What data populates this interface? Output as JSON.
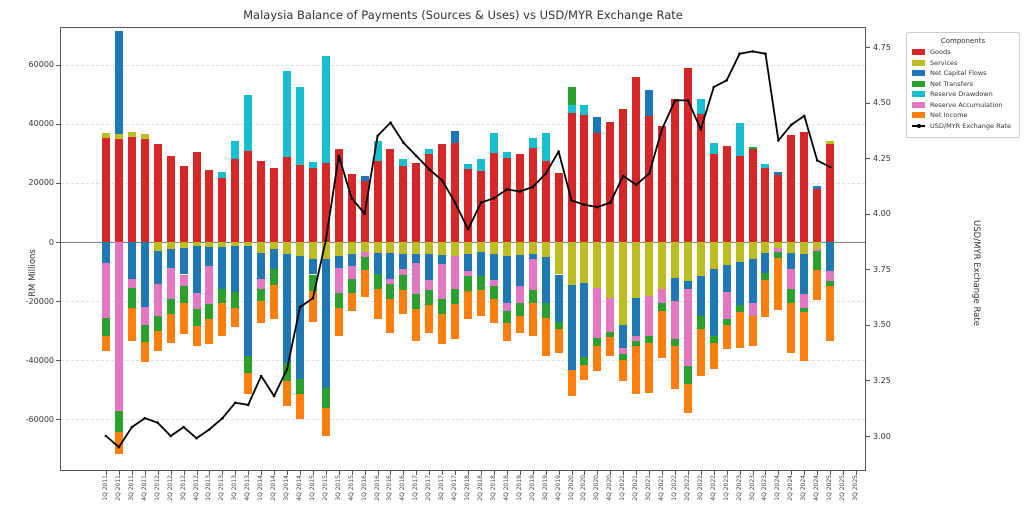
{
  "chart_data": {
    "type": "bar",
    "title": "Malaysia Balance of Payments (Sources & Uses) vs USD/MYR Exchange Rate",
    "left_axis": {
      "label": "RM Millions",
      "min": -77900,
      "max": 72500,
      "ticks": [
        {
          "value": 60000,
          "label": "60000"
        },
        {
          "value": 40000,
          "label": "40000"
        },
        {
          "value": 20000,
          "label": "20000"
        },
        {
          "value": 0,
          "label": "0"
        },
        {
          "value": -20000,
          "label": "-20000"
        },
        {
          "value": -40000,
          "label": "-40000"
        },
        {
          "value": -60000,
          "label": "-60000"
        }
      ]
    },
    "right_axis": {
      "label": "USD/MYR Exchange Rate",
      "ticks": [
        {
          "value": 4.75,
          "label": "4.75"
        },
        {
          "value": 4.5,
          "label": "4.50"
        },
        {
          "value": 4.25,
          "label": "4.25"
        },
        {
          "value": 4.0,
          "label": "4.00"
        },
        {
          "value": 3.75,
          "label": "3.75"
        },
        {
          "value": 3.5,
          "label": "3.50"
        },
        {
          "value": 3.25,
          "label": "3.25"
        },
        {
          "value": 3.0,
          "label": "3.00"
        }
      ]
    },
    "legend_title": "Components",
    "categories": [
      "1Q 2011",
      "2Q 2011",
      "3Q 2011",
      "4Q 2011",
      "1Q 2012",
      "2Q 2012",
      "3Q 2012",
      "4Q 2012",
      "1Q 2013",
      "2Q 2013",
      "3Q 2013",
      "4Q 2013",
      "1Q 2014",
      "2Q 2014",
      "3Q 2014",
      "4Q 2014",
      "1Q 2015",
      "2Q 2015",
      "3Q 2015",
      "4Q 2015",
      "1Q 2016",
      "2Q 2016",
      "3Q 2016",
      "4Q 2016",
      "1Q 2017",
      "2Q 2017",
      "3Q 2017",
      "4Q 2017",
      "1Q 2018",
      "2Q 2018",
      "3Q 2018",
      "4Q 2018",
      "1Q 2019",
      "2Q 2019",
      "3Q 2019",
      "4Q 2019",
      "1Q 2020",
      "2Q 2020",
      "3Q 2020",
      "4Q 2020",
      "1Q 2021",
      "2Q 2021",
      "3Q 2021",
      "4Q 2021",
      "1Q 2022",
      "2Q 2022",
      "3Q 2022",
      "4Q 2022",
      "1Q 2023",
      "2Q 2023",
      "3Q 2023",
      "4Q 2023",
      "1Q 2024",
      "2Q 2024",
      "3Q 2024",
      "4Q 2024",
      "1Q 2025",
      "2Q 2025",
      "3Q 2025"
    ],
    "series": [
      {
        "name": "Goods",
        "color": "#d62728",
        "values": [
          35300,
          34800,
          35600,
          34800,
          33100,
          29100,
          25700,
          30500,
          24400,
          21800,
          28000,
          30800,
          27400,
          25200,
          28900,
          26000,
          25200,
          26900,
          31400,
          22900,
          20700,
          27400,
          31600,
          25700,
          26900,
          29700,
          33100,
          33600,
          24600,
          24000,
          30000,
          28600,
          29900,
          31900,
          27400,
          23500,
          43600,
          42900,
          37000,
          40800,
          44900,
          56000,
          42700,
          39300,
          48500,
          58800,
          43300,
          29900,
          32500,
          29100,
          31400,
          25200,
          22700,
          36200,
          37400,
          17800,
          33100,
          0,
          0
        ]
      },
      {
        "name": "Services",
        "color": "#bcbd22",
        "values": [
          1500,
          1700,
          1700,
          1700,
          -3000,
          -2500,
          -2000,
          -1500,
          -1700,
          -1800,
          -1500,
          -1400,
          -3600,
          -2300,
          -4200,
          -4700,
          -5900,
          -5900,
          -4700,
          -4200,
          -3400,
          -3800,
          -3600,
          -3900,
          -4000,
          -4200,
          -4500,
          -4600,
          -4000,
          -3400,
          -3900,
          -4700,
          -4500,
          -4200,
          -5000,
          -11000,
          -14500,
          -14000,
          -15500,
          -19000,
          -28000,
          -19000,
          -18300,
          -16000,
          -12100,
          -13200,
          -11500,
          -9300,
          -7900,
          -6800,
          -5900,
          -3600,
          -2000,
          -3600,
          -4200,
          -2400,
          1100,
          0,
          0
        ]
      },
      {
        "name": "Net Capital Flows",
        "color": "#1f77b4",
        "values": [
          -7200,
          35000,
          -12500,
          -22000,
          -11300,
          -6200,
          -9000,
          -15700,
          -6400,
          -14000,
          -15500,
          -37200,
          -9000,
          -7000,
          -36700,
          -41800,
          -5100,
          -43400,
          -4000,
          -3900,
          1700,
          -7100,
          -9000,
          -5300,
          -3000,
          -8500,
          -3100,
          4000,
          -5900,
          -8100,
          -9000,
          -15800,
          -10400,
          -1700,
          -15500,
          -16000,
          -29000,
          -24800,
          5400,
          0,
          -7900,
          -13000,
          8700,
          0,
          -7900,
          -2800,
          -13600,
          -22500,
          -9000,
          -14500,
          -14600,
          -6800,
          1100,
          -5700,
          -13500,
          1100,
          -9800,
          0,
          0
        ]
      },
      {
        "name": "Net Transfers",
        "color": "#2ca02c",
        "values": [
          -5900,
          -7200,
          -7000,
          -6000,
          -5000,
          -5100,
          -5600,
          -5600,
          -5100,
          -4700,
          -5400,
          -5700,
          -4000,
          -5100,
          -6200,
          -5100,
          -5500,
          -6800,
          -5000,
          -4600,
          -4500,
          -5100,
          -5100,
          -5100,
          -5100,
          -5100,
          -5100,
          -5100,
          -5000,
          -4700,
          -4500,
          -4000,
          -4600,
          -4400,
          -5100,
          -2500,
          6100,
          -2900,
          -2800,
          -1700,
          -2000,
          -1700,
          -2300,
          -2900,
          -2200,
          -6200,
          -4500,
          -2300,
          -2000,
          -2500,
          900,
          -2600,
          -2000,
          -4700,
          -1500,
          -6200,
          -1700,
          0,
          0
        ]
      },
      {
        "name": "Reserve Drawdown",
        "color": "#17becf",
        "values": [
          0,
          0,
          0,
          0,
          0,
          0,
          0,
          0,
          0,
          2000,
          6200,
          18900,
          0,
          0,
          29000,
          26500,
          1900,
          36100,
          0,
          0,
          0,
          6800,
          0,
          2500,
          0,
          1700,
          0,
          0,
          1700,
          4000,
          7000,
          1900,
          0,
          3400,
          9400,
          0,
          2800,
          3500,
          0,
          0,
          0,
          0,
          0,
          0,
          0,
          0,
          5100,
          3500,
          0,
          11100,
          0,
          1400,
          0,
          0,
          0,
          0,
          0,
          0,
          0
        ]
      },
      {
        "name": "Reserve Accumulation",
        "color": "#e377c2",
        "values": [
          -18700,
          -57200,
          -3000,
          -6000,
          -10800,
          -10700,
          -3900,
          -5600,
          -13000,
          0,
          0,
          0,
          -3400,
          0,
          0,
          0,
          0,
          0,
          -8500,
          -4500,
          -1700,
          0,
          -1700,
          -2000,
          -10700,
          -3400,
          -11800,
          -11300,
          -1700,
          0,
          -2000,
          -3000,
          -5600,
          -10200,
          0,
          0,
          0,
          0,
          -17000,
          -11500,
          -2000,
          -1500,
          -13500,
          -4500,
          -13000,
          -26000,
          0,
          0,
          -9300,
          0,
          -4600,
          0,
          -1500,
          -6700,
          -4500,
          -800,
          -3400,
          0,
          0
        ]
      },
      {
        "name": "Net Income",
        "color": "#ff7f0e",
        "values": [
          -5100,
          -7500,
          -11000,
          -6500,
          -6800,
          -9600,
          -10800,
          -6800,
          -8500,
          -11300,
          -6400,
          -7300,
          -7300,
          -11800,
          -8400,
          -8500,
          -10600,
          -9600,
          -9600,
          -6200,
          -9000,
          -10200,
          -11300,
          -8000,
          -10700,
          -9600,
          -10200,
          -11900,
          -9600,
          -8900,
          -8000,
          -6000,
          -5600,
          -11300,
          -13000,
          -8000,
          -8500,
          -5100,
          -8500,
          -6500,
          -7200,
          -16400,
          -16900,
          -15800,
          -14700,
          -9600,
          -15800,
          -9000,
          -8000,
          -12000,
          -10100,
          -12400,
          -17500,
          -16800,
          -16600,
          -10200,
          -18600,
          0,
          0
        ]
      }
    ],
    "line_series": {
      "name": "USD/MYR Exchange Rate",
      "color": "#000000",
      "values": [
        3.0,
        2.95,
        3.04,
        3.08,
        3.06,
        3.0,
        3.04,
        2.99,
        3.03,
        3.08,
        3.15,
        3.14,
        3.27,
        3.18,
        3.3,
        3.58,
        3.62,
        3.88,
        4.26,
        4.07,
        4.0,
        4.35,
        4.41,
        4.32,
        4.26,
        4.2,
        4.15,
        4.05,
        3.93,
        4.05,
        4.07,
        4.11,
        4.1,
        4.12,
        4.18,
        4.28,
        4.06,
        4.04,
        4.03,
        4.05,
        4.17,
        4.13,
        4.18,
        4.38,
        4.51,
        4.51,
        4.38,
        4.57,
        4.6,
        4.72,
        4.73,
        4.72,
        4.33,
        4.4,
        4.44,
        4.24,
        4.21,
        null,
        null
      ]
    }
  }
}
